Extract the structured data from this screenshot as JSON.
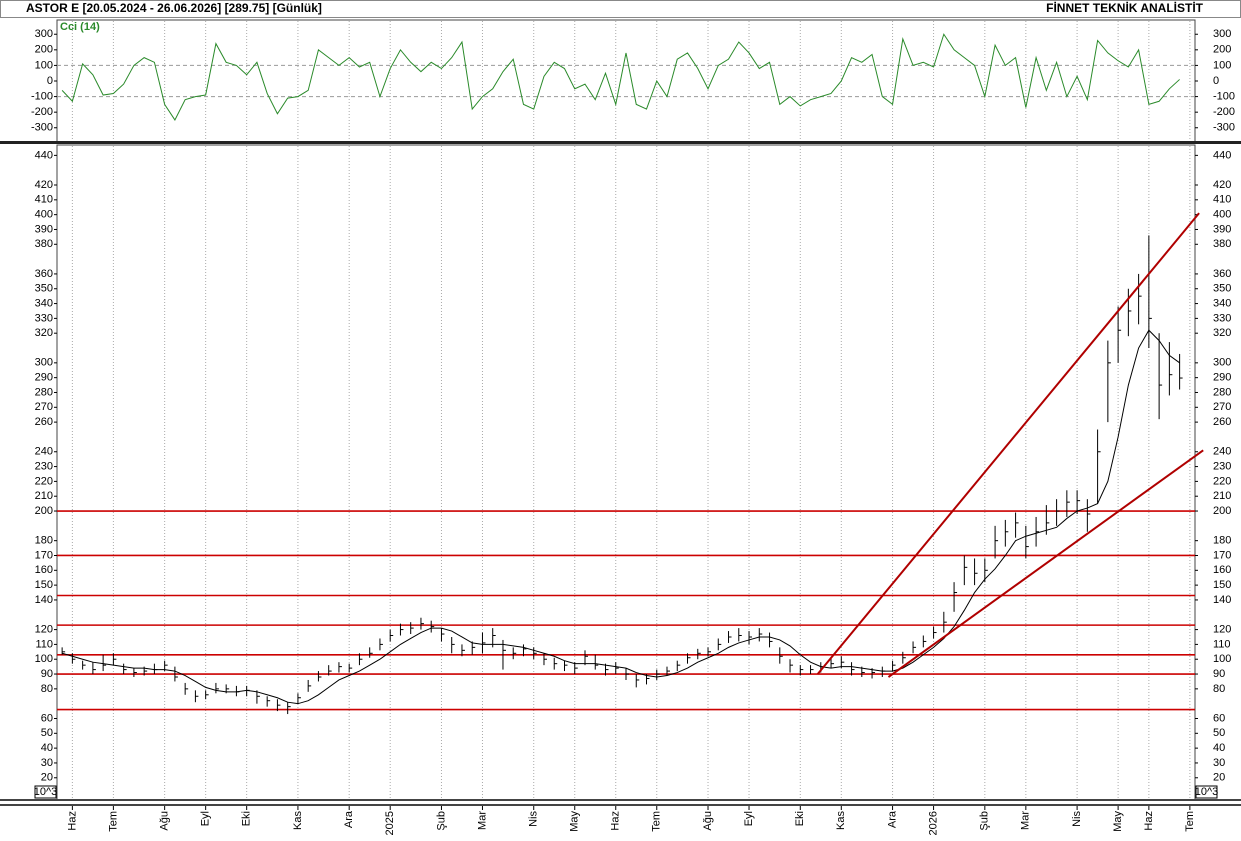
{
  "header": {
    "left": "ASTOR E  [20.05.2024 - 26.06.2026]  [289.75]  [Günlük]",
    "right": "FİNNET TEKNİK ANALİSTİT"
  },
  "chart_data": [
    {
      "type": "line",
      "title": "Cci (14)",
      "color": "#2a8a2a",
      "values": [
        -60,
        -130,
        110,
        40,
        -90,
        -80,
        -20,
        100,
        150,
        120,
        -150,
        -250,
        -120,
        -100,
        -90,
        240,
        120,
        100,
        40,
        120,
        -80,
        -210,
        -110,
        -100,
        -60,
        200,
        150,
        100,
        150,
        90,
        120,
        -100,
        80,
        200,
        120,
        60,
        120,
        80,
        150,
        250,
        -180,
        -100,
        -50,
        60,
        140,
        -150,
        -180,
        30,
        120,
        80,
        -50,
        -20,
        -120,
        50,
        -150,
        180,
        -150,
        -180,
        0,
        -100,
        140,
        180,
        80,
        -50,
        100,
        140,
        250,
        180,
        80,
        120,
        -150,
        -100,
        -160,
        -120,
        -100,
        -80,
        0,
        150,
        120,
        170,
        -100,
        -150,
        270,
        100,
        120,
        90,
        300,
        200,
        150,
        100,
        -100,
        230,
        100,
        150,
        -170,
        150,
        -60,
        120,
        -100,
        30,
        -120,
        260,
        180,
        130,
        90,
        200,
        -150,
        -130,
        -50,
        10,
        null
      ],
      "ylim": [
        -385,
        385
      ],
      "yticks": [
        300,
        200,
        100,
        0,
        -100,
        -200,
        -300
      ],
      "dashed_levels": [
        100,
        -100
      ]
    },
    {
      "type": "hlc",
      "color": "#000000",
      "y_multiplier": "10^3",
      "categories": [
        null,
        "Haz",
        null,
        null,
        null,
        "Tem",
        null,
        null,
        null,
        null,
        "Ağu",
        null,
        null,
        null,
        "Eyl",
        null,
        null,
        null,
        "Eki",
        null,
        null,
        null,
        null,
        "Kas",
        null,
        null,
        null,
        null,
        "Ara",
        null,
        null,
        null,
        "2025",
        null,
        null,
        null,
        null,
        "Şub",
        null,
        null,
        null,
        "Mar",
        null,
        null,
        null,
        null,
        "Nis",
        null,
        null,
        null,
        "May",
        null,
        null,
        null,
        "Haz",
        null,
        null,
        null,
        "Tem",
        null,
        null,
        null,
        null,
        "Ağu",
        null,
        null,
        null,
        "Eyl",
        null,
        null,
        null,
        null,
        "Eki",
        null,
        null,
        null,
        "Kas",
        null,
        null,
        null,
        null,
        "Ara",
        null,
        null,
        null,
        "2026",
        null,
        null,
        null,
        null,
        "Şub",
        null,
        null,
        null,
        "Mar",
        null,
        null,
        null,
        null,
        "Nis",
        null,
        null,
        null,
        "May",
        null,
        null,
        "Haz",
        null,
        null,
        null,
        "Tem"
      ],
      "high": [
        108,
        104,
        99,
        98,
        103,
        104,
        97,
        94,
        95,
        97,
        99,
        95,
        84,
        79,
        79,
        84,
        83,
        82,
        82,
        79,
        75,
        73,
        71,
        77,
        86,
        92,
        96,
        98,
        97,
        104,
        108,
        114,
        120,
        124,
        125,
        128,
        126,
        121,
        115,
        110,
        112,
        118,
        121,
        113,
        108,
        110,
        108,
        104,
        101,
        99,
        98,
        106,
        103,
        97,
        98,
        94,
        90,
        90,
        93,
        95,
        99,
        104,
        107,
        108,
        114,
        119,
        121,
        119,
        121,
        118,
        108,
        100,
        96,
        96,
        98,
        101,
        102,
        98,
        95,
        94,
        95,
        99,
        105,
        112,
        116,
        122,
        132,
        152,
        170,
        168,
        168,
        190,
        194,
        199,
        190,
        196,
        204,
        208,
        214,
        214,
        208,
        255,
        315,
        338,
        350,
        360,
        386,
        320,
        314,
        306,
        null
      ],
      "low": [
        103,
        97,
        93,
        90,
        92,
        96,
        90,
        88,
        89,
        90,
        92,
        85,
        76,
        71,
        73,
        77,
        77,
        75,
        75,
        70,
        68,
        65,
        63,
        70,
        78,
        85,
        89,
        91,
        91,
        96,
        101,
        106,
        112,
        116,
        117,
        120,
        118,
        112,
        104,
        102,
        103,
        104,
        108,
        93,
        100,
        102,
        100,
        96,
        93,
        92,
        90,
        96,
        93,
        89,
        90,
        86,
        81,
        83,
        86,
        89,
        92,
        97,
        100,
        102,
        106,
        111,
        112,
        110,
        112,
        108,
        97,
        91,
        89,
        90,
        91,
        94,
        94,
        89,
        88,
        87,
        88,
        92,
        97,
        104,
        108,
        114,
        118,
        132,
        150,
        150,
        152,
        168,
        176,
        182,
        168,
        176,
        184,
        190,
        196,
        198,
        186,
        205,
        260,
        300,
        318,
        326,
        310,
        262,
        278,
        282,
        null
      ],
      "close": [
        105,
        100,
        96,
        93,
        96,
        100,
        93,
        91,
        92,
        93,
        96,
        88,
        80,
        75,
        76,
        80,
        80,
        78,
        79,
        75,
        72,
        69,
        68,
        74,
        82,
        88,
        92,
        95,
        94,
        100,
        104,
        110,
        116,
        120,
        121,
        124,
        122,
        117,
        110,
        106,
        108,
        111,
        116,
        106,
        104,
        107,
        104,
        100,
        97,
        96,
        94,
        102,
        96,
        93,
        94,
        90,
        86,
        87,
        90,
        92,
        96,
        101,
        104,
        105,
        110,
        115,
        116,
        115,
        117,
        112,
        102,
        96,
        93,
        93,
        95,
        97,
        98,
        93,
        91,
        91,
        92,
        96,
        101,
        108,
        112,
        118,
        125,
        145,
        162,
        158,
        160,
        180,
        186,
        192,
        176,
        186,
        192,
        200,
        206,
        207,
        198,
        240,
        300,
        322,
        335,
        345,
        330,
        285,
        292,
        289.75,
        null
      ],
      "ma": {
        "color": "#000000",
        "values": [
          104,
          102,
          100,
          98,
          97,
          96,
          95,
          94,
          94,
          93,
          93,
          92,
          89,
          85,
          81,
          79,
          78,
          78,
          79,
          78,
          76,
          74,
          71,
          70,
          72,
          76,
          81,
          86,
          89,
          92,
          96,
          100,
          105,
          110,
          114,
          118,
          121,
          121,
          119,
          115,
          111,
          110,
          110,
          110,
          109,
          108,
          106,
          104,
          102,
          99,
          97,
          97,
          97,
          96,
          95,
          94,
          91,
          89,
          88,
          89,
          91,
          94,
          98,
          101,
          104,
          108,
          111,
          113,
          115,
          115,
          113,
          109,
          103,
          98,
          95,
          94,
          95,
          95,
          94,
          93,
          92,
          92,
          94,
          98,
          103,
          108,
          114,
          122,
          133,
          145,
          154,
          161,
          170,
          180,
          183,
          185,
          187,
          189,
          195,
          200,
          202,
          205,
          220,
          250,
          285,
          310,
          322,
          315,
          305,
          300,
          null
        ]
      },
      "hlines": {
        "color": "#cc0000",
        "values": [
          200,
          170,
          143,
          123,
          103,
          90,
          66
        ]
      },
      "trendlines": [
        {
          "color": "#b00000",
          "x": [
            73.7,
            110.9
          ],
          "y": [
            90,
            401
          ]
        },
        {
          "color": "#b00000",
          "x": [
            80.6,
            111.3
          ],
          "y": [
            88,
            241
          ]
        }
      ],
      "ylim": [
        5,
        447
      ],
      "yticks": [
        440,
        420,
        410,
        400,
        390,
        380,
        360,
        350,
        340,
        330,
        320,
        300,
        290,
        280,
        270,
        260,
        240,
        230,
        220,
        210,
        200,
        180,
        170,
        160,
        150,
        140,
        120,
        110,
        100,
        90,
        80,
        60,
        50,
        40,
        30,
        20
      ]
    }
  ]
}
